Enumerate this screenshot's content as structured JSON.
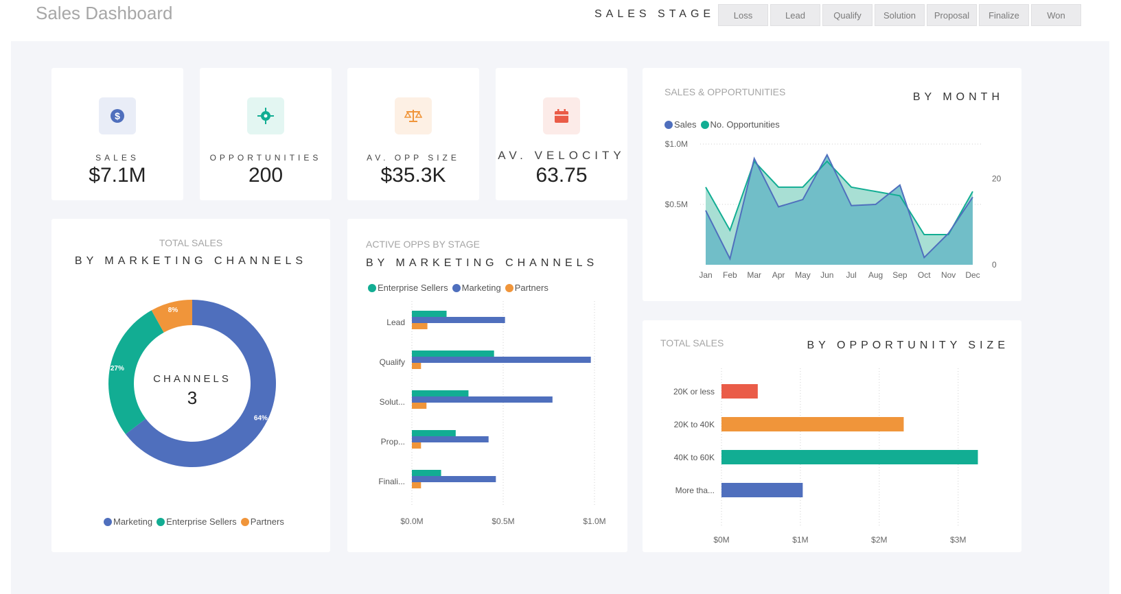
{
  "header": {
    "title": "Sales Dashboard",
    "stage_label": "SALES STAGE",
    "stages": [
      "Loss",
      "Lead",
      "Qualify",
      "Solution",
      "Proposal",
      "Finalize",
      "Won"
    ]
  },
  "kpis": [
    {
      "label": "SALES",
      "value": "$7.1M",
      "icon": "dollar-icon",
      "color": "#4f6fbd",
      "bg": "#e9edf7"
    },
    {
      "label": "OPPORTUNITIES",
      "value": "200",
      "icon": "target-icon",
      "color": "#12ad93",
      "bg": "#e3f6f2"
    },
    {
      "label": "AV. OPP SIZE",
      "value": "$35.3K",
      "icon": "scale-icon",
      "color": "#f0953a",
      "bg": "#fdf0e4"
    },
    {
      "label": "AV. VELOCITY",
      "value": "63.75",
      "icon": "calendar-icon",
      "color": "#ea5c48",
      "bg": "#fcebe8"
    }
  ],
  "colors": {
    "marketing": "#4f6fbd",
    "enterprise": "#12ad93",
    "partners": "#f0953a",
    "red": "#ea5c48",
    "sales_area": "#67b8c6",
    "opps_area": "#9fdccf"
  },
  "donut": {
    "subtitle": "TOTAL SALES",
    "title": "BY MARKETING CHANNELS",
    "center_label": "CHANNELS",
    "center_value": "3",
    "legend": [
      "Marketing",
      "Enterprise Sellers",
      "Partners"
    ]
  },
  "bars_stage": {
    "subtitle": "ACTIVE OPPS BY STAGE",
    "title": "BY MARKETING CHANNELS",
    "legend": [
      "Enterprise Sellers",
      "Marketing",
      "Partners"
    ]
  },
  "line_chart": {
    "subtitle": "SALES & OPPORTUNITIES",
    "title": "BY MONTH",
    "legend": [
      "Sales",
      "No. Opportunities"
    ]
  },
  "size_chart": {
    "subtitle": "TOTAL SALES",
    "title": "BY OPPORTUNITY SIZE"
  },
  "chart_data": [
    {
      "type": "pie",
      "title": "BY MARKETING CHANNELS",
      "categories": [
        "Marketing",
        "Enterprise Sellers",
        "Partners"
      ],
      "values": [
        64,
        27,
        8
      ],
      "labels": [
        "64%",
        "27%",
        "8%"
      ],
      "legend": "bottom"
    },
    {
      "type": "bar",
      "title": "BY MARKETING CHANNELS",
      "orientation": "horizontal",
      "categories": [
        "Lead",
        "Qualify",
        "Solut...",
        "Prop...",
        "Finali..."
      ],
      "series": [
        {
          "name": "Enterprise Sellers",
          "values": [
            0.19,
            0.45,
            0.31,
            0.24,
            0.16
          ]
        },
        {
          "name": "Marketing",
          "values": [
            0.51,
            0.98,
            0.77,
            0.42,
            0.46
          ]
        },
        {
          "name": "Partners",
          "values": [
            0.085,
            0.05,
            0.08,
            0.05,
            0.05
          ]
        }
      ],
      "xlim": [
        0,
        1.0
      ],
      "xticks": [
        "$0.0M",
        "$0.5M",
        "$1.0M"
      ],
      "legend": "top-left"
    },
    {
      "type": "area",
      "title": "BY MONTH",
      "categories": [
        "Jan",
        "Feb",
        "Mar",
        "Apr",
        "May",
        "Jun",
        "Jul",
        "Aug",
        "Sep",
        "Oct",
        "Nov",
        "Dec"
      ],
      "series": [
        {
          "name": "Sales",
          "axis": "left",
          "values": [
            0.45,
            0.05,
            0.88,
            0.48,
            0.54,
            0.91,
            0.49,
            0.5,
            0.66,
            0.06,
            0.26,
            0.56
          ]
        },
        {
          "name": "No. Opportunities",
          "axis": "right",
          "values": [
            18,
            8,
            24,
            18,
            18,
            24,
            18,
            17,
            16,
            7,
            7,
            17
          ]
        }
      ],
      "ylim_left": [
        0,
        1.0
      ],
      "yticks_left": [
        "$0.5M",
        "$1.0M"
      ],
      "ylim_right": [
        0,
        28
      ],
      "yticks_right": [
        "0",
        "20"
      ],
      "legend": "top-left"
    },
    {
      "type": "bar",
      "title": "BY OPPORTUNITY SIZE",
      "orientation": "horizontal",
      "categories": [
        "20K or less",
        "20K to 40K",
        "40K to 60K",
        "More tha..."
      ],
      "values": [
        0.46,
        2.31,
        3.25,
        1.03
      ],
      "xlim": [
        0,
        3.35
      ],
      "xticks": [
        "$0M",
        "$1M",
        "$2M",
        "$3M"
      ]
    }
  ]
}
